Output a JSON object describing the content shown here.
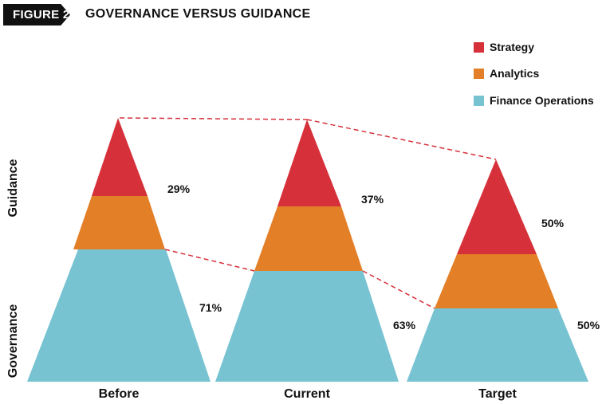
{
  "figure_label": "FIGURE 2",
  "title": "GOVERNANCE VERSUS GUIDANCE",
  "colors": {
    "strategy": "#d6313a",
    "analytics": "#e37f27",
    "finance_operations": "#77c3d2",
    "dashed_line": "#d6313a",
    "badge_bg": "#111111"
  },
  "chart_data": {
    "type": "pyramid",
    "title": "GOVERNANCE VERSUS GUIDANCE",
    "legend": [
      "Strategy",
      "Analytics",
      "Finance Operations"
    ],
    "legend_position": "top-right",
    "y_side_labels": [
      "Guidance",
      "Governance"
    ],
    "categories": [
      "Before",
      "Current",
      "Target"
    ],
    "guidance_share": [
      "29%",
      "37%",
      "50%"
    ],
    "governance_share": [
      "71%",
      "63%",
      "50%"
    ]
  }
}
